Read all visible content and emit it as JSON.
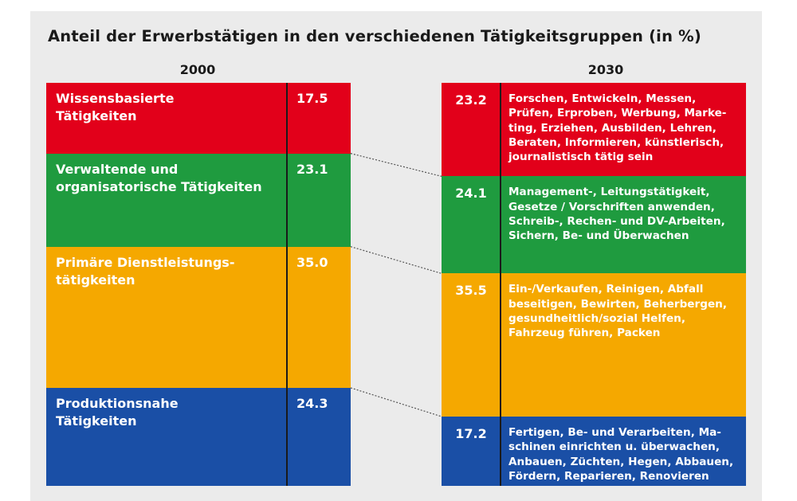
{
  "colors": {
    "red": "#e2001a",
    "green": "#1f9b3f",
    "orange": "#f5a800",
    "blue": "#1a4fa6"
  },
  "chart_data": {
    "type": "bar",
    "title": "Anteil der Erwerbstätigen in den verschiedenen Tätigkeitsgruppen (in %)",
    "categories": [
      "Wissensbasierte Tätigkeiten",
      "Verwaltende und organisatorische Tätigkeiten",
      "Primäre Dienstleistungstätigkeiten",
      "Produktionsnahe Tätigkeiten"
    ],
    "colors": [
      "#e2001a",
      "#1f9b3f",
      "#f5a800",
      "#1a4fa6"
    ],
    "series": [
      {
        "name": "2000",
        "values": [
          17.5,
          23.1,
          35.0,
          24.3
        ],
        "labels": [
          "17.5",
          "23.1",
          "35.0",
          "24.3"
        ],
        "names": [
          [
            "Wissensbasierte",
            "Tätigkeiten"
          ],
          [
            "Verwaltende und",
            "organisatorische Tätigkeiten"
          ],
          [
            "Primäre Dienstleistungs-",
            "tätigkeiten"
          ],
          [
            "Produktionsnahe",
            "Tätigkeiten"
          ]
        ]
      },
      {
        "name": "2030",
        "values": [
          23.2,
          24.1,
          35.5,
          17.2
        ],
        "labels": [
          "23.2",
          "24.1",
          "35.5",
          "17.2"
        ],
        "descriptions": [
          [
            "Forschen, Entwickeln, Messen,",
            "Prüfen, Erproben, Werbung, Marke-",
            "ting, Erziehen, Ausbilden, Lehren,",
            "Beraten, Informieren, künstlerisch,",
            "journalistisch tätig sein"
          ],
          [
            "Management-, Leitungstätigkeit,",
            "Gesetze / Vorschriften anwenden,",
            "Schreib-, Rechen- und DV-Arbeiten,",
            "Sichern, Be- und Überwachen"
          ],
          [
            "Ein-/Verkaufen, Reinigen, Abfall",
            "beseitigen, Bewirten, Beherbergen,",
            "gesundheitlich/sozial Helfen,",
            "Fahrzeug führen, Packen"
          ],
          [
            "Fertigen, Be- und Verarbeiten, Ma-",
            "schinen einrichten u. überwachen,",
            "Anbauen, Züchten, Hegen, Abbauen,",
            "Fördern, Reparieren, Renovieren"
          ]
        ]
      }
    ]
  }
}
